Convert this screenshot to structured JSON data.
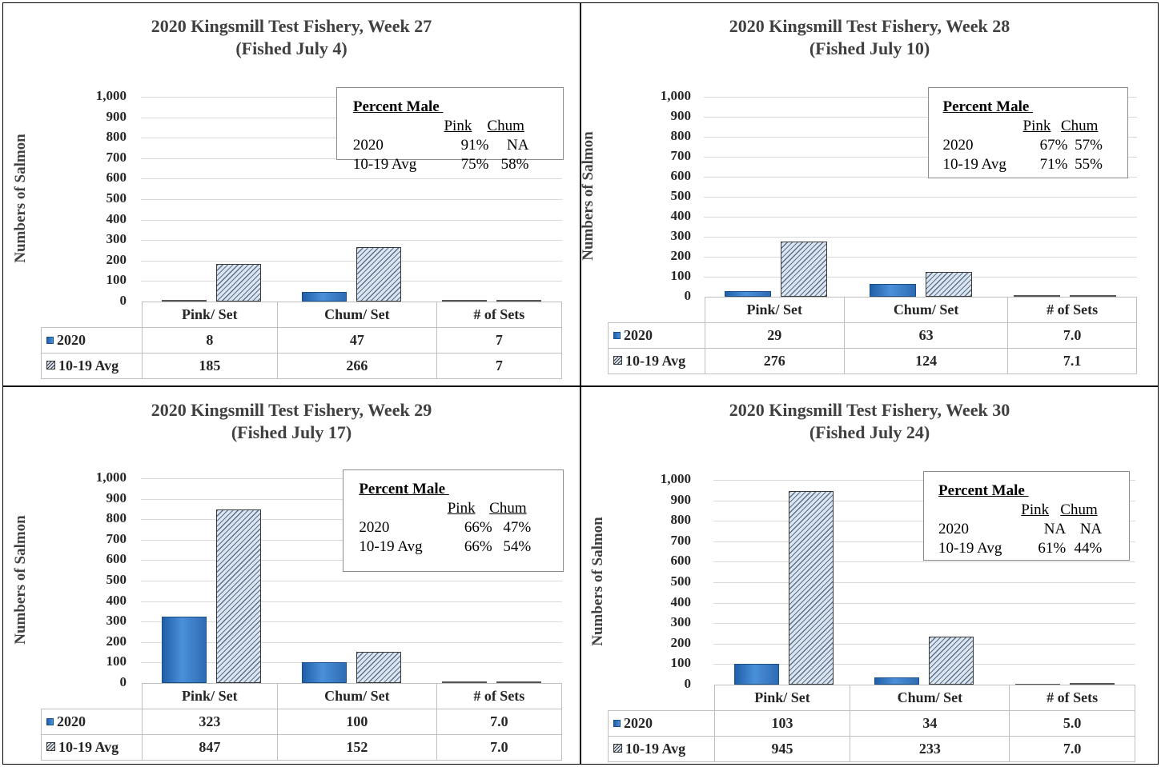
{
  "chart_data": [
    {
      "type": "bar",
      "title": "2020 Kingsmill Test Fishery, Week 27",
      "subtitle": "(Fished July 4)",
      "ylabel": "Numbers of Salmon",
      "ylim": [
        0,
        1000
      ],
      "yticks": [
        "0",
        "100",
        "200",
        "300",
        "400",
        "500",
        "600",
        "700",
        "800",
        "900",
        "1,000"
      ],
      "grid": true,
      "categories": [
        "Pink/ Set",
        "Chum/ Set",
        "# of Sets"
      ],
      "series": [
        {
          "name": "2020",
          "values": [
            8,
            47,
            7
          ],
          "labels": [
            "8",
            "47",
            "7"
          ]
        },
        {
          "name": "10-19 Avg",
          "values": [
            185,
            266,
            7
          ],
          "labels": [
            "185",
            "266",
            "7"
          ]
        }
      ],
      "percent_male": {
        "heading": "Percent Male",
        "col_pink": "Pink",
        "col_chum": "Chum",
        "rows": [
          {
            "label": "2020",
            "pink": "91%",
            "chum": "NA"
          },
          {
            "label": "10-19 Avg",
            "pink": "75%",
            "chum": "58%"
          }
        ]
      }
    },
    {
      "type": "bar",
      "title": "2020 Kingsmill Test Fishery, Week 28",
      "subtitle": "(Fished July 10)",
      "ylabel": "Numbers of Salmon",
      "ylim": [
        0,
        1000
      ],
      "yticks": [
        "0",
        "100",
        "200",
        "300",
        "400",
        "500",
        "600",
        "700",
        "800",
        "900",
        "1,000"
      ],
      "grid": true,
      "categories": [
        "Pink/ Set",
        "Chum/ Set",
        "# of Sets"
      ],
      "series": [
        {
          "name": "2020",
          "values": [
            29,
            63,
            7.0
          ],
          "labels": [
            "29",
            "63",
            "7.0"
          ]
        },
        {
          "name": "10-19 Avg",
          "values": [
            276,
            124,
            7.1
          ],
          "labels": [
            "276",
            "124",
            "7.1"
          ]
        }
      ],
      "percent_male": {
        "heading": "Percent Male",
        "col_pink": "Pink",
        "col_chum": "Chum",
        "rows": [
          {
            "label": "2020",
            "pink": "67%",
            "chum": "57%"
          },
          {
            "label": "10-19 Avg",
            "pink": "71%",
            "chum": "55%"
          }
        ]
      }
    },
    {
      "type": "bar",
      "title": "2020 Kingsmill Test Fishery, Week 29",
      "subtitle": "(Fished July 17)",
      "ylabel": "Numbers of Salmon",
      "ylim": [
        0,
        1000
      ],
      "yticks": [
        "0",
        "100",
        "200",
        "300",
        "400",
        "500",
        "600",
        "700",
        "800",
        "900",
        "1,000"
      ],
      "grid": true,
      "categories": [
        "Pink/ Set",
        "Chum/ Set",
        "# of Sets"
      ],
      "series": [
        {
          "name": "2020",
          "values": [
            323,
            100,
            7.0
          ],
          "labels": [
            "323",
            "100",
            "7.0"
          ]
        },
        {
          "name": "10-19 Avg",
          "values": [
            847,
            152,
            7.0
          ],
          "labels": [
            "847",
            "152",
            "7.0"
          ]
        }
      ],
      "percent_male": {
        "heading": "Percent Male",
        "col_pink": "Pink",
        "col_chum": "Chum",
        "rows": [
          {
            "label": "2020",
            "pink": "66%",
            "chum": "47%"
          },
          {
            "label": "10-19 Avg",
            "pink": "66%",
            "chum": "54%"
          }
        ]
      }
    },
    {
      "type": "bar",
      "title": "2020 Kingsmill Test Fishery, Week 30",
      "subtitle": "(Fished July 24)",
      "ylabel": "Numbers of Salmon",
      "ylim": [
        0,
        1000
      ],
      "yticks": [
        "0",
        "100",
        "200",
        "300",
        "400",
        "500",
        "600",
        "700",
        "800",
        "900",
        "1,000"
      ],
      "grid": true,
      "categories": [
        "Pink/ Set",
        "Chum/ Set",
        "# of Sets"
      ],
      "series": [
        {
          "name": "2020",
          "values": [
            103,
            34,
            5.0
          ],
          "labels": [
            "103",
            "34",
            "5.0"
          ]
        },
        {
          "name": "10-19 Avg",
          "values": [
            945,
            233,
            7.0
          ],
          "labels": [
            "945",
            "233",
            "7.0"
          ]
        }
      ],
      "percent_male": {
        "heading": "Percent Male",
        "col_pink": "Pink",
        "col_chum": "Chum",
        "rows": [
          {
            "label": "2020",
            "pink": "NA",
            "chum": "NA"
          },
          {
            "label": "10-19 Avg",
            "pink": "61%",
            "chum": "44%"
          }
        ]
      }
    }
  ]
}
